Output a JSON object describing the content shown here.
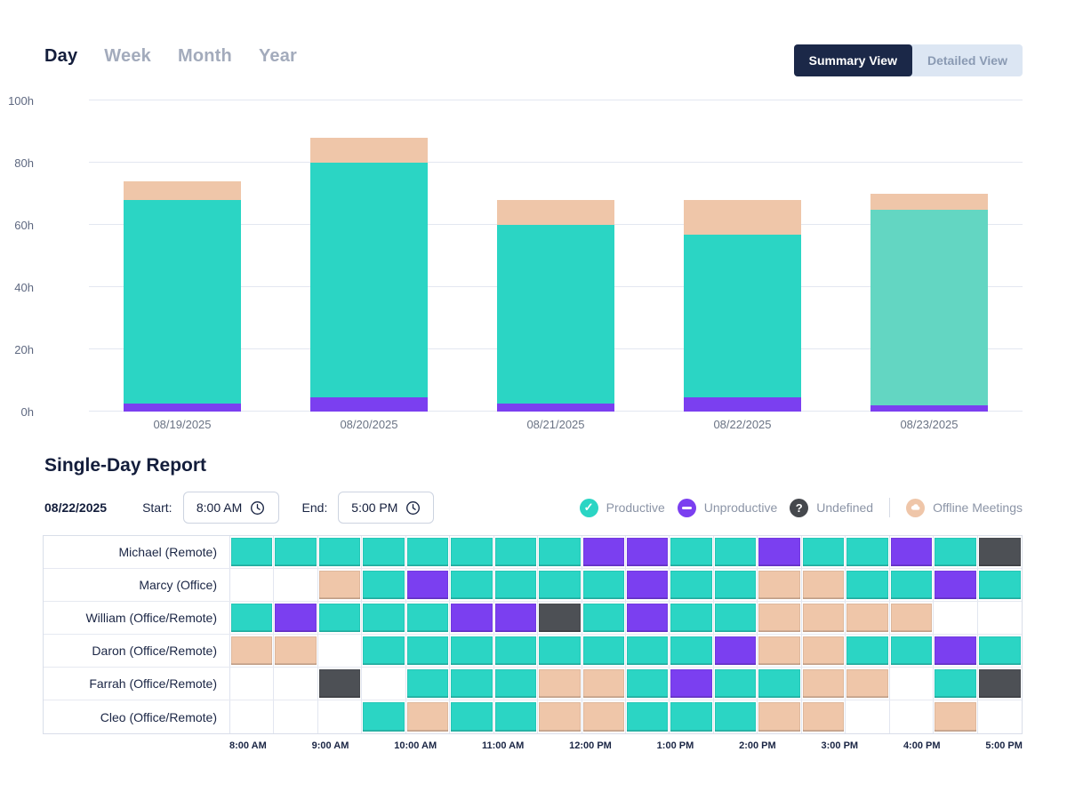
{
  "tabs": [
    {
      "label": "Day",
      "active": true
    },
    {
      "label": "Week",
      "active": false
    },
    {
      "label": "Month",
      "active": false
    },
    {
      "label": "Year",
      "active": false
    }
  ],
  "view_toggle": {
    "summary_label": "Summary View",
    "detailed_label": "Detailed View"
  },
  "chart_data": {
    "type": "bar",
    "stacked": true,
    "categories": [
      "08/19/2025",
      "08/20/2025",
      "08/21/2025",
      "08/22/2025",
      "08/23/2025"
    ],
    "series": [
      {
        "name": "Unproductive",
        "color": "#7b3ff0",
        "values": [
          2.5,
          4.5,
          2.5,
          4.5,
          2
        ]
      },
      {
        "name": "Productive",
        "color": "#2bd5c4",
        "values": [
          65.5,
          75.5,
          57.5,
          52.5,
          63
        ],
        "per_bar_colors": [
          "#2bd5c4",
          "#2bd5c4",
          "#2bd5c4",
          "#2bd5c4",
          "#63d6c2"
        ]
      },
      {
        "name": "Offline Meetings",
        "color": "#efc6a9",
        "values": [
          6,
          8,
          8,
          11,
          5
        ]
      }
    ],
    "y_ticks": [
      "0h",
      "20h",
      "40h",
      "60h",
      "80h",
      "100h"
    ],
    "ylim": [
      0,
      100
    ],
    "grid": true,
    "legend_position": "below-report-header"
  },
  "report": {
    "title": "Single-Day Report",
    "date": "08/22/2025",
    "start_label": "Start:",
    "start_value": "8:00 AM",
    "end_label": "End:",
    "end_value": "5:00 PM"
  },
  "legend": {
    "items": [
      {
        "label": "Productive",
        "color": "#2bd5c4",
        "glyph": "check"
      },
      {
        "label": "Unproductive",
        "color": "#7b3ff0",
        "glyph": "minus"
      },
      {
        "label": "Undefined",
        "color": "#45484d",
        "glyph": "question"
      },
      {
        "label": "Offline Meetings",
        "color": "#efc6a9",
        "glyph": "cloud",
        "divider_before": true
      }
    ]
  },
  "timeline": {
    "cell_colors": {
      "P": "#2bd5c4",
      "U": "#7b3ff0",
      "X": "#4d5055",
      "O": "#efc6a9",
      "E": "#ffffff"
    },
    "rows": [
      {
        "name": "Michael (Remote)",
        "cells": [
          "P",
          "P",
          "P",
          "P",
          "P",
          "P",
          "P",
          "P",
          "U",
          "U",
          "P",
          "P",
          "U",
          "P",
          "P",
          "U",
          "P",
          "X"
        ]
      },
      {
        "name": "Marcy (Office)",
        "cells": [
          "E",
          "E",
          "O",
          "P",
          "U",
          "P",
          "P",
          "P",
          "P",
          "U",
          "P",
          "P",
          "O",
          "O",
          "P",
          "P",
          "U",
          "P"
        ]
      },
      {
        "name": "William (Office/Remote)",
        "cells": [
          "P",
          "U",
          "P",
          "P",
          "P",
          "U",
          "U",
          "X",
          "P",
          "U",
          "P",
          "P",
          "O",
          "O",
          "O",
          "O",
          "E",
          "E"
        ]
      },
      {
        "name": "Daron (Office/Remote)",
        "cells": [
          "O",
          "O",
          "E",
          "P",
          "P",
          "P",
          "P",
          "P",
          "P",
          "P",
          "P",
          "U",
          "O",
          "O",
          "P",
          "P",
          "U",
          "P"
        ]
      },
      {
        "name": "Farrah (Office/Remote)",
        "cells": [
          "E",
          "E",
          "X",
          "E",
          "P",
          "P",
          "P",
          "O",
          "O",
          "P",
          "U",
          "P",
          "P",
          "O",
          "O",
          "E",
          "P",
          "X"
        ]
      },
      {
        "name": "Cleo (Office/Remote)",
        "cells": [
          "E",
          "E",
          "E",
          "P",
          "O",
          "P",
          "P",
          "O",
          "O",
          "P",
          "P",
          "P",
          "O",
          "O",
          "E",
          "E",
          "O",
          "E"
        ]
      }
    ],
    "time_labels": [
      "8:00 AM",
      "9:00 AM",
      "10:00 AM",
      "11:00 AM",
      "12:00 PM",
      "1:00 PM",
      "2:00 PM",
      "3:00 PM",
      "4:00 PM",
      "5:00 PM"
    ]
  }
}
